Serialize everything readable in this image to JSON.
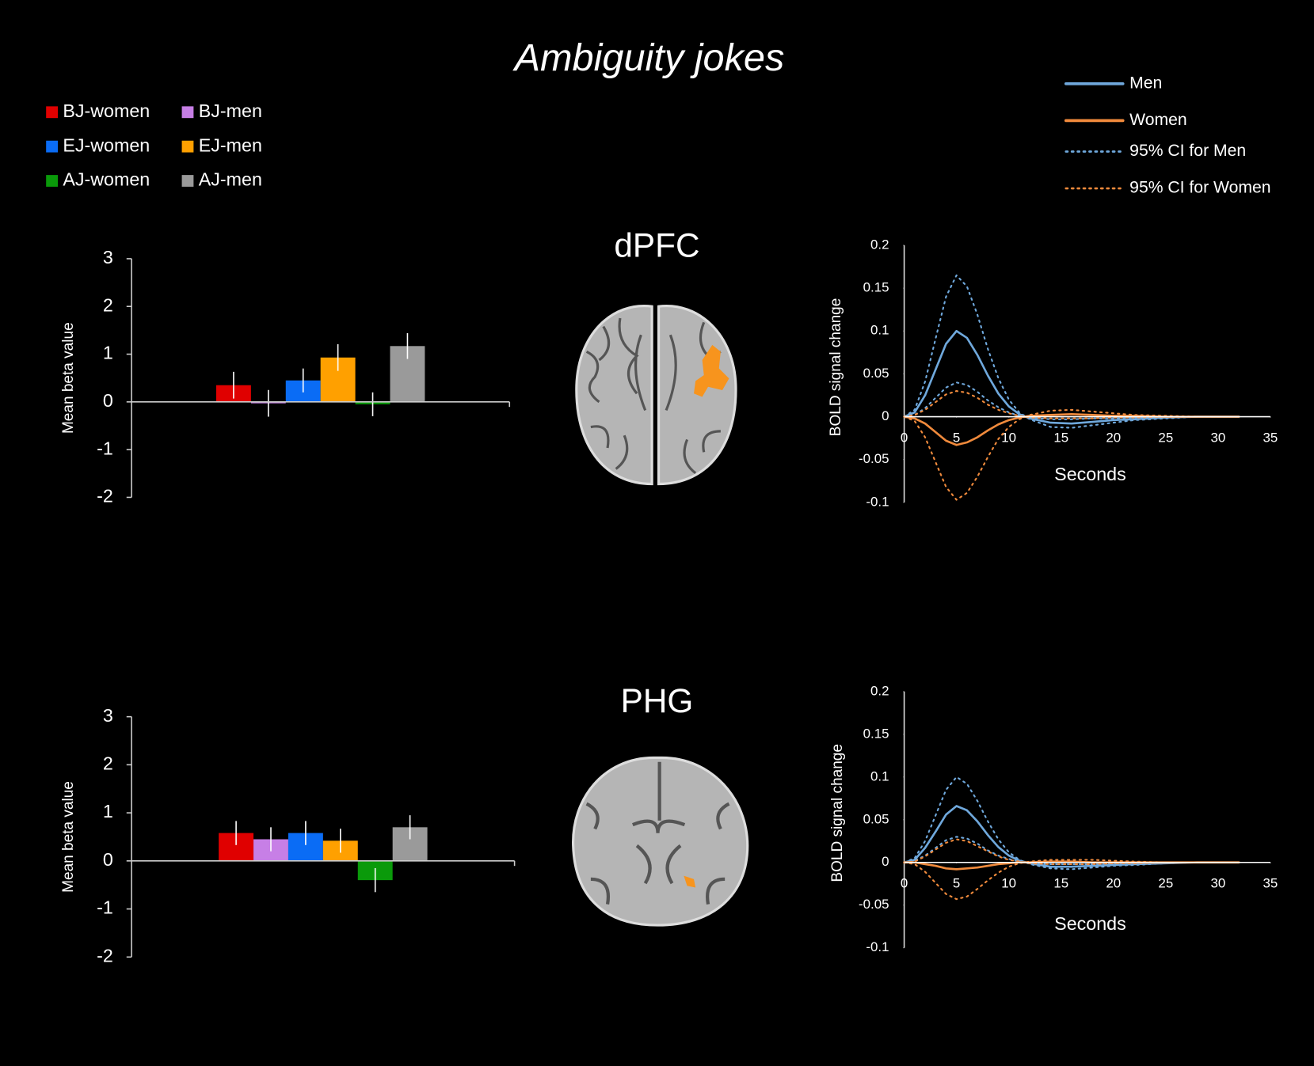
{
  "title": "Ambiguity jokes",
  "regions": [
    "dPFC",
    "PHG"
  ],
  "bar_legend": [
    {
      "name": "BJ-women",
      "color": "#e00000"
    },
    {
      "name": "BJ-men",
      "color": "#c77fe6"
    },
    {
      "name": "EJ-women",
      "color": "#0a6cf5"
    },
    {
      "name": "EJ-men",
      "color": "#ffa000"
    },
    {
      "name": "AJ-women",
      "color": "#0a9a0a"
    },
    {
      "name": "AJ-men",
      "color": "#9a9a9a"
    }
  ],
  "line_legend": [
    {
      "name": "Men",
      "color": "#6fa8dc",
      "dash": "solid"
    },
    {
      "name": "Women",
      "color": "#f08a3c",
      "dash": "solid"
    },
    {
      "name": "95% CI for Men",
      "color": "#6fa8dc",
      "dash": "dotted"
    },
    {
      "name": "95% CI for Women",
      "color": "#f08a3c",
      "dash": "dotted"
    }
  ],
  "chart_data": [
    {
      "type": "bar",
      "ylabel": "Mean beta value",
      "values": [
        0.35,
        -0.03,
        0.45,
        0.93,
        -0.05,
        1.17
      ],
      "errors": [
        0.28,
        0.28,
        0.25,
        0.28,
        0.25,
        0.27
      ],
      "ylim": [
        -2,
        3
      ],
      "yticks": [
        -2,
        -1,
        0,
        1,
        2,
        3
      ]
    },
    {
      "type": "line",
      "xlabel": "Seconds",
      "ylabel": "BOLD signal change",
      "x": [
        0,
        1,
        2,
        3,
        4,
        5,
        6,
        7,
        8,
        9,
        10,
        11,
        12,
        14,
        16,
        18,
        20,
        22,
        25,
        28,
        32
      ],
      "xlim": [
        0,
        35
      ],
      "xticks": [
        0,
        5,
        10,
        15,
        20,
        25,
        30,
        35
      ],
      "ylim": [
        -0.1,
        0.2
      ],
      "yticks": [
        -0.1,
        -0.05,
        0,
        0.05,
        0.1,
        0.15,
        0.2
      ],
      "series": [
        {
          "color": "#6fa8dc",
          "dash": "solid",
          "values": [
            0,
            0.005,
            0.025,
            0.055,
            0.085,
            0.1,
            0.092,
            0.072,
            0.048,
            0.027,
            0.012,
            0.003,
            -0.002,
            -0.007,
            -0.008,
            -0.006,
            -0.004,
            -0.003,
            -0.001,
            0,
            0
          ]
        },
        {
          "color": "#6fa8dc",
          "dash": "dotted",
          "values": [
            0,
            0.008,
            0.041,
            0.091,
            0.14,
            0.165,
            0.152,
            0.119,
            0.079,
            0.045,
            0.02,
            0.005,
            -0.003,
            -0.012,
            -0.013,
            -0.01,
            -0.007,
            -0.004,
            -0.002,
            0,
            0
          ]
        },
        {
          "color": "#6fa8dc",
          "dash": "dotted",
          "values": [
            0,
            0.002,
            0.01,
            0.022,
            0.034,
            0.04,
            0.037,
            0.029,
            0.019,
            0.011,
            0.005,
            0.001,
            -0.001,
            -0.003,
            -0.003,
            -0.002,
            -0.002,
            -0.001,
            0,
            0,
            0
          ]
        },
        {
          "color": "#f08a3c",
          "dash": "solid",
          "values": [
            0,
            -0.002,
            -0.008,
            -0.018,
            -0.028,
            -0.033,
            -0.03,
            -0.024,
            -0.016,
            -0.009,
            -0.004,
            -0.001,
            0.001,
            0.002,
            0.003,
            0.002,
            0.001,
            0.001,
            0,
            0,
            0
          ]
        },
        {
          "color": "#f08a3c",
          "dash": "dotted",
          "values": [
            0,
            0.002,
            0.008,
            0.017,
            0.026,
            0.03,
            0.028,
            0.022,
            0.014,
            0.008,
            0.004,
            0.001,
            -0.001,
            -0.002,
            -0.002,
            -0.002,
            -0.001,
            -0.001,
            0,
            0,
            0
          ]
        },
        {
          "color": "#f08a3c",
          "dash": "dotted",
          "values": [
            0,
            -0.005,
            -0.024,
            -0.053,
            -0.082,
            -0.097,
            -0.089,
            -0.07,
            -0.047,
            -0.026,
            -0.012,
            -0.003,
            0.002,
            0.007,
            0.008,
            0.006,
            0.004,
            0.002,
            0.001,
            0,
            0
          ]
        }
      ]
    },
    {
      "type": "bar",
      "ylabel": "Mean beta value",
      "values": [
        0.58,
        0.45,
        0.58,
        0.42,
        -0.4,
        0.7
      ],
      "errors": [
        0.25,
        0.25,
        0.25,
        0.25,
        0.25,
        0.25
      ],
      "ylim": [
        -2,
        3
      ],
      "yticks": [
        -2,
        -1,
        0,
        1,
        2,
        3
      ]
    },
    {
      "type": "line",
      "xlabel": "Seconds",
      "ylabel": "BOLD signal change",
      "x": [
        0,
        1,
        2,
        3,
        4,
        5,
        6,
        7,
        8,
        9,
        10,
        11,
        12,
        14,
        16,
        18,
        20,
        22,
        25,
        28,
        32
      ],
      "xlim": [
        0,
        35
      ],
      "xticks": [
        0,
        5,
        10,
        15,
        20,
        25,
        30,
        35
      ],
      "ylim": [
        -0.1,
        0.2
      ],
      "yticks": [
        -0.1,
        -0.05,
        0,
        0.05,
        0.1,
        0.15,
        0.2
      ],
      "series": [
        {
          "color": "#6fa8dc",
          "dash": "solid",
          "values": [
            0,
            0.003,
            0.017,
            0.036,
            0.056,
            0.066,
            0.061,
            0.048,
            0.032,
            0.018,
            0.008,
            0.002,
            -0.001,
            -0.005,
            -0.005,
            -0.004,
            -0.003,
            -0.002,
            -0.001,
            0,
            0
          ]
        },
        {
          "color": "#6fa8dc",
          "dash": "dotted",
          "values": [
            0,
            0.005,
            0.025,
            0.055,
            0.085,
            0.1,
            0.092,
            0.072,
            0.048,
            0.027,
            0.012,
            0.003,
            -0.002,
            -0.007,
            -0.008,
            -0.006,
            -0.004,
            -0.003,
            -0.001,
            0,
            0
          ]
        },
        {
          "color": "#6fa8dc",
          "dash": "dotted",
          "values": [
            0,
            0.002,
            0.008,
            0.017,
            0.026,
            0.03,
            0.028,
            0.022,
            0.014,
            0.008,
            0.004,
            0.001,
            -0.001,
            -0.002,
            -0.002,
            -0.002,
            -0.001,
            -0.001,
            0,
            0,
            0
          ]
        },
        {
          "color": "#f08a3c",
          "dash": "solid",
          "values": [
            0,
            0,
            -0.002,
            -0.004,
            -0.007,
            -0.008,
            -0.007,
            -0.006,
            -0.004,
            -0.002,
            -0.001,
            0,
            0,
            0.001,
            0.001,
            0,
            0,
            0,
            0,
            0,
            0
          ]
        },
        {
          "color": "#f08a3c",
          "dash": "dotted",
          "values": [
            0,
            0.001,
            0.007,
            0.015,
            0.023,
            0.027,
            0.025,
            0.019,
            0.013,
            0.007,
            0.003,
            0.001,
            -0.001,
            -0.002,
            -0.002,
            -0.002,
            -0.001,
            -0.001,
            0,
            0,
            0
          ]
        },
        {
          "color": "#f08a3c",
          "dash": "dotted",
          "values": [
            0,
            -0.002,
            -0.011,
            -0.024,
            -0.037,
            -0.043,
            -0.04,
            -0.031,
            -0.021,
            -0.012,
            -0.005,
            -0.001,
            0.001,
            0.003,
            0.003,
            0.003,
            0.002,
            0.001,
            0,
            0,
            0
          ]
        }
      ]
    }
  ]
}
